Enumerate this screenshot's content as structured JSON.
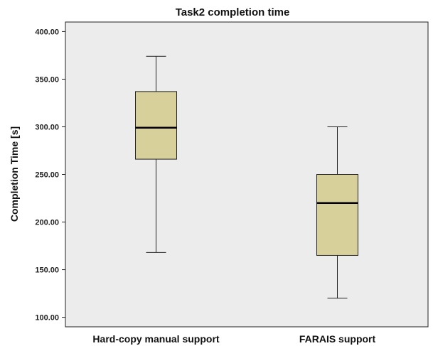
{
  "chart_data": {
    "type": "boxplot",
    "title": "Task2 completion time",
    "xlabel": "",
    "ylabel": "Completion Time [s]",
    "ylim": [
      90,
      410
    ],
    "yticks": [
      100,
      150,
      200,
      250,
      300,
      350,
      400
    ],
    "ytick_labels": [
      "100.00",
      "150.00",
      "200.00",
      "250.00",
      "300.00",
      "350.00",
      "400.00"
    ],
    "categories": [
      "Hard-copy manual support",
      "FARAIS support"
    ],
    "boxes": [
      {
        "whisker_low": 168,
        "q1": 266,
        "median": 299,
        "q3": 337,
        "whisker_high": 374
      },
      {
        "whisker_low": 120,
        "q1": 165,
        "median": 220,
        "q3": 250,
        "whisker_high": 300
      }
    ],
    "grid": false,
    "colors": {
      "plot_background": "#ececec",
      "box_fill": "#d8d09b",
      "stroke": "#222222"
    }
  }
}
